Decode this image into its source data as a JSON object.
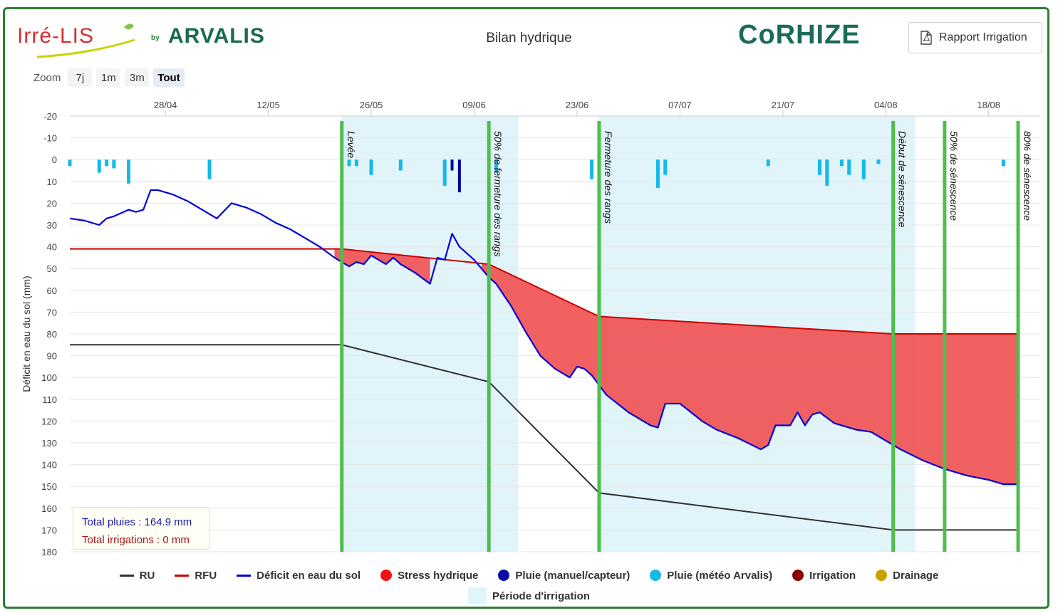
{
  "header": {
    "logo_irre": "Irré-LIS",
    "logo_by": "by",
    "logo_arvalis": "ARVALIS",
    "title": "Bilan hydrique",
    "logo_corhize": "CoRHIZE",
    "report_button": "Rapport Irrigation"
  },
  "zoom": {
    "label": "Zoom",
    "options": [
      "7j",
      "1m",
      "3m",
      "Tout"
    ],
    "active": "Tout"
  },
  "totals": {
    "rain": "Total pluies : 164.9 mm",
    "irrigation": "Total irrigations : 0 mm"
  },
  "legend": {
    "ru": "RU",
    "rfu": "RFU",
    "deficit": "Déficit en eau du sol",
    "stress": "Stress hydrique",
    "rain_manual": "Pluie (manuel/capteur)",
    "rain_meteo": "Pluie (météo Arvalis)",
    "irrigation": "Irrigation",
    "drainage": "Drainage",
    "period": "Période d'irrigation"
  },
  "colors": {
    "ru": "#333333",
    "rfu": "#cc0000",
    "deficit": "#0000dd",
    "stress_fill": "#f05050",
    "rain_manual": "#00009e",
    "rain_meteo": "#14b9ea",
    "irrigation": "#8b0000",
    "drainage": "#c9a000",
    "period": "#e0f4fa",
    "stage": "#4cbf4c"
  },
  "chart_data": {
    "type": "line",
    "ylabel": "Déficit en eau du sol (mm)",
    "xlabel": "",
    "y_inverted": true,
    "ylim": [
      -20,
      180
    ],
    "yticks": [
      -20,
      -10,
      0,
      10,
      20,
      30,
      40,
      50,
      60,
      70,
      80,
      90,
      100,
      110,
      120,
      130,
      140,
      150,
      160,
      170,
      180
    ],
    "xlim": [
      "2024-04-15",
      "2024-08-25"
    ],
    "xticks": [
      {
        "date": "2024-04-28",
        "label": "28/04"
      },
      {
        "date": "2024-05-12",
        "label": "12/05"
      },
      {
        "date": "2024-05-26",
        "label": "26/05"
      },
      {
        "date": "2024-06-09",
        "label": "09/06"
      },
      {
        "date": "2024-06-23",
        "label": "23/06"
      },
      {
        "date": "2024-07-07",
        "label": "07/07"
      },
      {
        "date": "2024-07-21",
        "label": "21/07"
      },
      {
        "date": "2024-08-04",
        "label": "04/08"
      },
      {
        "date": "2024-08-18",
        "label": "18/08"
      }
    ],
    "grid": true,
    "stages": [
      {
        "date": "2024-05-22",
        "label": "Levée"
      },
      {
        "date": "2024-06-11",
        "label": "50% de fermeture des rangs"
      },
      {
        "date": "2024-06-26",
        "label": "Fermeture des rangs"
      },
      {
        "date": "2024-08-05",
        "label": "Début de sénescence"
      },
      {
        "date": "2024-08-12",
        "label": "50% de sénescence"
      },
      {
        "date": "2024-08-22",
        "label": "80% de sénescence"
      }
    ],
    "irrigation_periods": [
      {
        "start": "2024-05-22",
        "end": "2024-06-15"
      },
      {
        "start": "2024-06-26",
        "end": "2024-08-08"
      }
    ],
    "series": [
      {
        "name": "RU",
        "x": [
          "2024-04-15",
          "2024-05-22",
          "2024-06-11",
          "2024-06-26",
          "2024-08-05",
          "2024-08-22"
        ],
        "y": [
          85,
          85,
          102,
          153,
          170,
          170
        ]
      },
      {
        "name": "RFU",
        "x": [
          "2024-04-15",
          "2024-05-22",
          "2024-06-11",
          "2024-06-26",
          "2024-08-05",
          "2024-08-22"
        ],
        "y": [
          41,
          41,
          48,
          72,
          80,
          80
        ]
      },
      {
        "name": "Déficit en eau du sol",
        "x": [
          "2024-04-15",
          "2024-04-17",
          "2024-04-19",
          "2024-04-20",
          "2024-04-21",
          "2024-04-23",
          "2024-04-24",
          "2024-04-25",
          "2024-04-26",
          "2024-04-27",
          "2024-04-29",
          "2024-05-01",
          "2024-05-03",
          "2024-05-04",
          "2024-05-05",
          "2024-05-07",
          "2024-05-09",
          "2024-05-11",
          "2024-05-13",
          "2024-05-15",
          "2024-05-17",
          "2024-05-19",
          "2024-05-21",
          "2024-05-23",
          "2024-05-24",
          "2024-05-25",
          "2024-05-26",
          "2024-05-27",
          "2024-05-28",
          "2024-05-29",
          "2024-05-30",
          "2024-06-01",
          "2024-06-03",
          "2024-06-04",
          "2024-06-05",
          "2024-06-06",
          "2024-06-07",
          "2024-06-09",
          "2024-06-10",
          "2024-06-11",
          "2024-06-12",
          "2024-06-14",
          "2024-06-16",
          "2024-06-18",
          "2024-06-20",
          "2024-06-22",
          "2024-06-23",
          "2024-06-24",
          "2024-06-25",
          "2024-06-27",
          "2024-06-30",
          "2024-07-03",
          "2024-07-04",
          "2024-07-05",
          "2024-07-07",
          "2024-07-10",
          "2024-07-12",
          "2024-07-15",
          "2024-07-18",
          "2024-07-19",
          "2024-07-20",
          "2024-07-22",
          "2024-07-23",
          "2024-07-24",
          "2024-07-25",
          "2024-07-26",
          "2024-07-28",
          "2024-07-31",
          "2024-08-02",
          "2024-08-04",
          "2024-08-06",
          "2024-08-09",
          "2024-08-12",
          "2024-08-15",
          "2024-08-18",
          "2024-08-20",
          "2024-08-22"
        ],
        "y": [
          27,
          28,
          30,
          27,
          26,
          23,
          24,
          23,
          14,
          14,
          16,
          19,
          23,
          25,
          27,
          20,
          22,
          25,
          29,
          32,
          36,
          40,
          45,
          49,
          47,
          48,
          44,
          46,
          48,
          45,
          48,
          52,
          57,
          45,
          46,
          34,
          40,
          46,
          50,
          54,
          57,
          67,
          79,
          90,
          96,
          100,
          95,
          96,
          99,
          108,
          116,
          122,
          123,
          112,
          112,
          120,
          124,
          128,
          133,
          131,
          122,
          122,
          116,
          122,
          117,
          116,
          121,
          124,
          125,
          129,
          133,
          138,
          142,
          145,
          147,
          149,
          149
        ]
      },
      {
        "name": "Pluie (météo Arvalis)",
        "bars": [
          {
            "date": "2024-04-15",
            "mm": 3
          },
          {
            "date": "2024-04-19",
            "mm": 6
          },
          {
            "date": "2024-04-20",
            "mm": 3
          },
          {
            "date": "2024-04-21",
            "mm": 4
          },
          {
            "date": "2024-04-23",
            "mm": 11
          },
          {
            "date": "2024-05-04",
            "mm": 9
          },
          {
            "date": "2024-05-23",
            "mm": 3
          },
          {
            "date": "2024-05-24",
            "mm": 3
          },
          {
            "date": "2024-05-26",
            "mm": 7
          },
          {
            "date": "2024-05-30",
            "mm": 5
          },
          {
            "date": "2024-06-05",
            "mm": 12
          },
          {
            "date": "2024-06-12",
            "mm": 6
          },
          {
            "date": "2024-06-25",
            "mm": 9
          },
          {
            "date": "2024-07-04",
            "mm": 13
          },
          {
            "date": "2024-07-05",
            "mm": 7
          },
          {
            "date": "2024-07-19",
            "mm": 3
          },
          {
            "date": "2024-07-26",
            "mm": 7
          },
          {
            "date": "2024-07-27",
            "mm": 12
          },
          {
            "date": "2024-07-29",
            "mm": 3
          },
          {
            "date": "2024-07-30",
            "mm": 7
          },
          {
            "date": "2024-08-01",
            "mm": 9
          },
          {
            "date": "2024-08-03",
            "mm": 2
          },
          {
            "date": "2024-08-20",
            "mm": 3
          }
        ]
      },
      {
        "name": "Pluie (manuel/capteur)",
        "bars": [
          {
            "date": "2024-06-06",
            "mm": 5
          },
          {
            "date": "2024-06-07",
            "mm": 15
          }
        ]
      }
    ]
  }
}
